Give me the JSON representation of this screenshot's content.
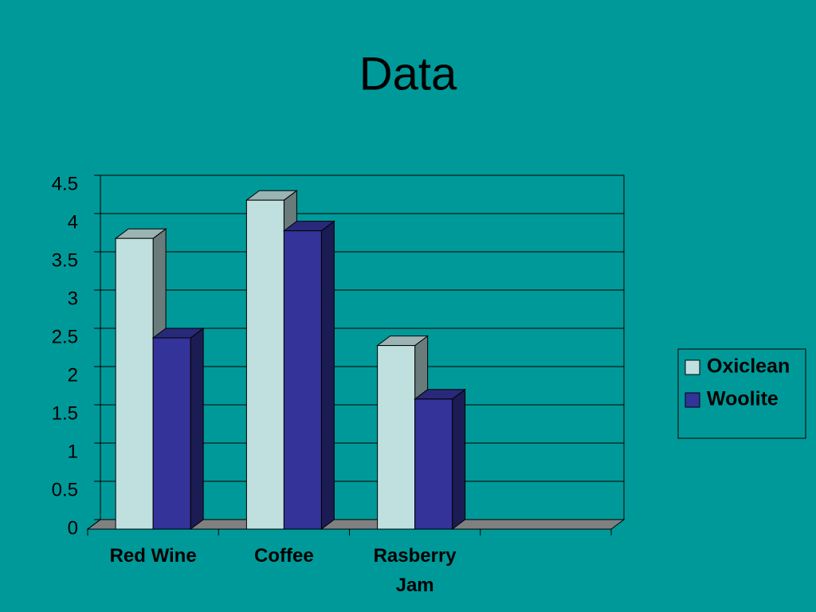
{
  "chart_data": {
    "type": "bar3d",
    "title": "Data",
    "categories": [
      "Red Wine",
      "Coffee",
      "Rasberry Jam",
      null
    ],
    "series": [
      {
        "name": "Oxiclean",
        "color": "#c0e0e0",
        "values": [
          3.8,
          4.3,
          2.4,
          null
        ]
      },
      {
        "name": "Woolite",
        "color": "#333399",
        "values": [
          2.5,
          3.9,
          1.7,
          null
        ]
      }
    ],
    "ylim": [
      0,
      4.5
    ],
    "yticks": [
      0,
      0.5,
      1,
      1.5,
      2,
      2.5,
      3,
      3.5,
      4,
      4.5
    ],
    "grid": true,
    "legend": "right"
  }
}
